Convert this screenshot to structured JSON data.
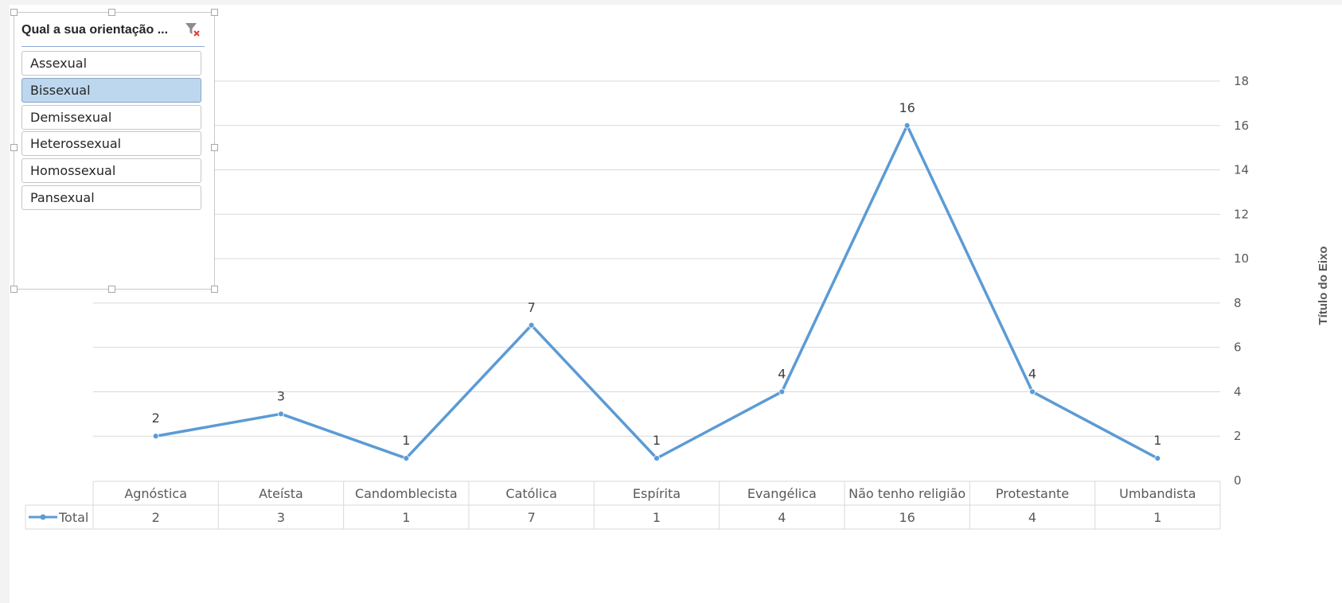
{
  "slicer": {
    "title": "Qual a sua orientação ...",
    "clear_filter_icon": "clear-filter-icon",
    "items": [
      {
        "label": "Assexual",
        "selected": false
      },
      {
        "label": "Bissexual",
        "selected": true
      },
      {
        "label": "Demissexual",
        "selected": false
      },
      {
        "label": "Heterossexual",
        "selected": false
      },
      {
        "label": "Homossexual",
        "selected": false
      },
      {
        "label": "Pansexual",
        "selected": false
      }
    ]
  },
  "chart_data": {
    "type": "line",
    "categories": [
      "Agnóstica",
      "Ateísta",
      "Candomblecista",
      "Católica",
      "Espírita",
      "Evangélica",
      "Não tenho religião",
      "Protestante",
      "Umbandista"
    ],
    "series": [
      {
        "name": "Total",
        "values": [
          2,
          3,
          1,
          7,
          1,
          4,
          16,
          4,
          1
        ],
        "color": "#5b9bd5"
      }
    ],
    "ylabel": "Título do Eixo",
    "ylim": [
      0,
      18
    ],
    "yticks": [
      0,
      2,
      4,
      6,
      8,
      10,
      12,
      14,
      16,
      18
    ],
    "y_axis_position": "right",
    "grid": true,
    "data_labels": true,
    "data_table": true,
    "gridline_color": "#d9d9d9"
  }
}
